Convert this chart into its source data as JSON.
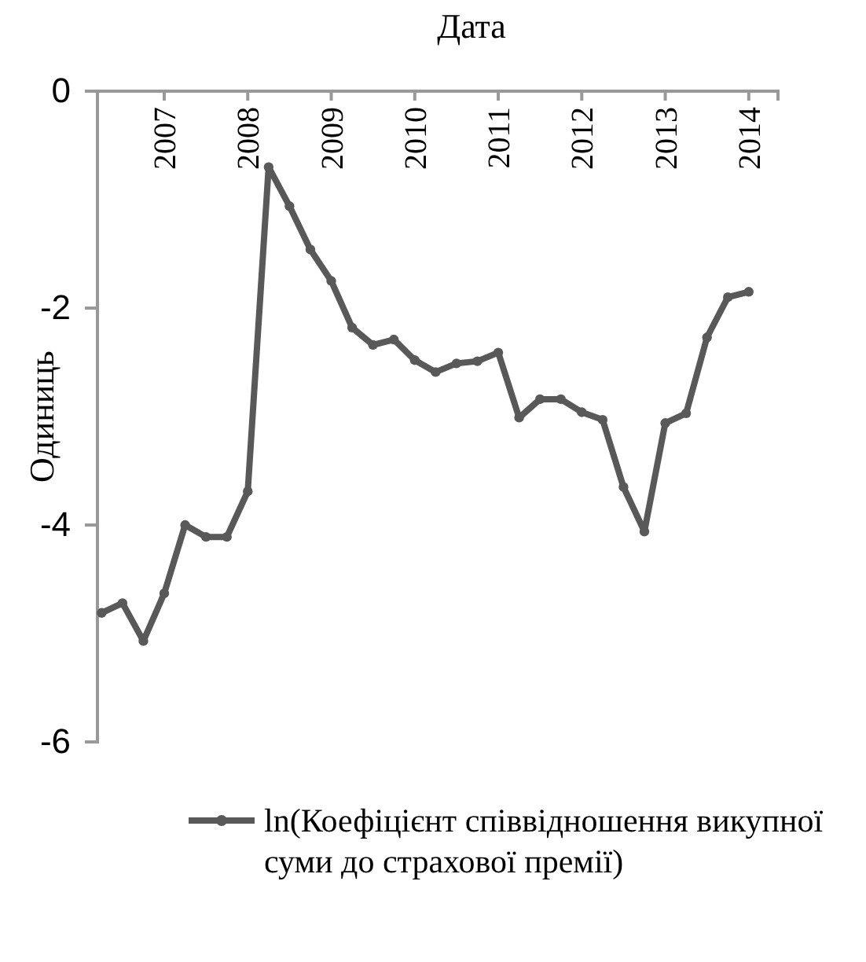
{
  "chart_data": {
    "type": "line",
    "title": "Дата",
    "ylabel": "Одиниць",
    "x": [
      2006.25,
      2006.5,
      2006.75,
      2007,
      2007.25,
      2007.5,
      2007.75,
      2008,
      2008.25,
      2008.5,
      2008.75,
      2009,
      2009.25,
      2009.5,
      2009.75,
      2010,
      2010.25,
      2010.5,
      2010.75,
      2011,
      2011.25,
      2011.5,
      2011.75,
      2012,
      2012.25,
      2012.5,
      2012.75,
      2013,
      2013.25,
      2013.5,
      2013.75,
      2014
    ],
    "series": [
      {
        "name": "ln(Коефіцієнт співвідношення викупної суми до страхової премії)",
        "color": "#595959",
        "values": [
          -4.81,
          -4.72,
          -5.07,
          -4.63,
          -4.0,
          -4.11,
          -4.11,
          -3.69,
          -0.7,
          -1.06,
          -1.46,
          -1.75,
          -2.18,
          -2.34,
          -2.29,
          -2.48,
          -2.59,
          -2.51,
          -2.49,
          -2.41,
          -3.01,
          -2.84,
          -2.84,
          -2.96,
          -3.03,
          -3.65,
          -4.06,
          -3.06,
          -2.97,
          -2.27,
          -1.9,
          -1.85
        ]
      }
    ],
    "xlim": [
      2006.2,
      2014.35
    ],
    "xticks": [
      2007,
      2008,
      2009,
      2010,
      2011,
      2012,
      2013,
      2014
    ],
    "ylim": [
      -6,
      0
    ],
    "yticks": [
      0,
      -2,
      -4,
      -6
    ],
    "grid": false,
    "legend": "bottom",
    "marker": "circle",
    "line_style": "solid"
  }
}
